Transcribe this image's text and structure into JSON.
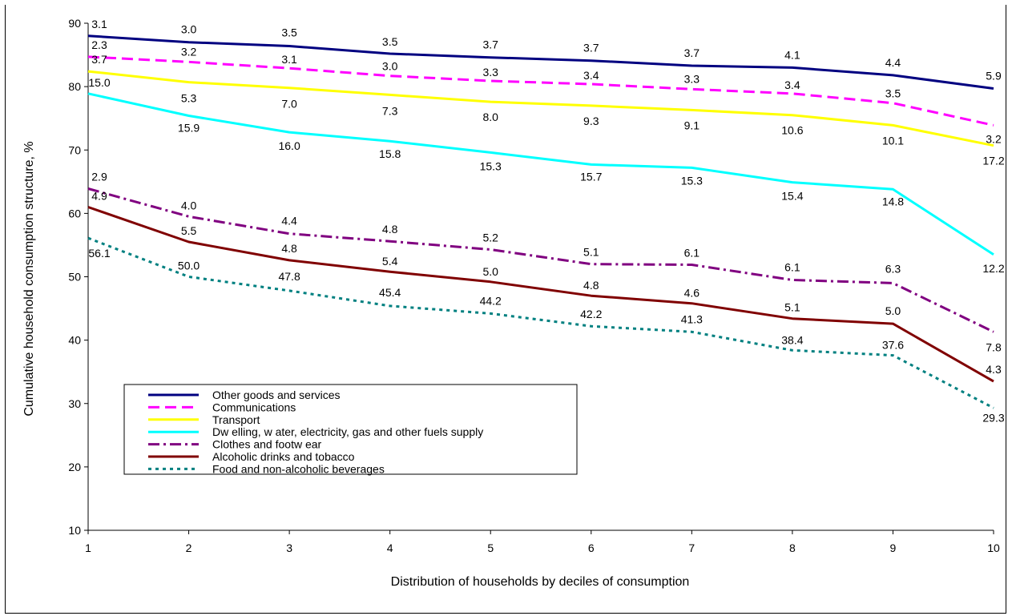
{
  "chart_data": {
    "type": "line",
    "title": "",
    "xlabel": "Distribution of households by deciles of consumption",
    "ylabel": "Cumulative household consumption structure, %",
    "x": [
      1,
      2,
      3,
      4,
      5,
      6,
      7,
      8,
      9,
      10
    ],
    "ylim": [
      10,
      90
    ],
    "yticks": [
      10,
      20,
      30,
      40,
      50,
      60,
      70,
      80,
      90
    ],
    "grid": false,
    "legend_position": "bottom-left",
    "series": [
      {
        "name": "Other goods and services",
        "color": "#000080",
        "dash": "solid",
        "values": [
          88.0,
          87.0,
          86.4,
          85.2,
          84.6,
          84.1,
          83.3,
          83.0,
          81.8,
          79.7
        ],
        "labels": [
          "3.1",
          "3.0",
          "3.5",
          "3.5",
          "3.7",
          "3.7",
          "3.7",
          "4.1",
          "4.4",
          "5.9"
        ]
      },
      {
        "name": "Communications",
        "color": "#FF00FF",
        "dash": "dashed",
        "values": [
          84.7,
          83.9,
          82.9,
          81.7,
          80.9,
          80.4,
          79.6,
          78.9,
          77.4,
          73.9
        ],
        "labels": [
          "2.3",
          "3.2",
          "3.1",
          "3.0",
          "3.3",
          "3.4",
          "3.3",
          "3.4",
          "3.5",
          "3.2"
        ]
      },
      {
        "name": "Transport",
        "color": "#FFFF00",
        "dash": "solid",
        "values": [
          82.4,
          80.7,
          79.8,
          78.7,
          77.6,
          77.0,
          76.3,
          75.5,
          73.9,
          70.7
        ],
        "labels": [
          "3.7",
          "5.3",
          "7.0",
          "7.3",
          "8.0",
          "9.3",
          "9.1",
          "10.6",
          "10.1",
          "17.2"
        ]
      },
      {
        "name": "Dw elling, w ater, electricity, gas and other fuels supply",
        "color": "#00FFFF",
        "dash": "solid",
        "values": [
          78.9,
          75.4,
          72.8,
          71.4,
          69.6,
          67.7,
          67.2,
          64.9,
          63.8,
          53.5
        ],
        "labels": [
          "15.0",
          "15.9",
          "16.0",
          "15.8",
          "15.3",
          "15.7",
          "15.3",
          "15.4",
          "14.8",
          "12.2"
        ]
      },
      {
        "name": "Clothes and footw ear",
        "color": "#800080",
        "dash": "dashdot",
        "values": [
          63.9,
          59.5,
          56.8,
          55.6,
          54.3,
          52.0,
          51.9,
          49.5,
          49.0,
          41.3
        ],
        "labels": [
          "2.9",
          "4.0",
          "4.4",
          "4.8",
          "5.2",
          "5.1",
          "6.1",
          "6.1",
          "6.3",
          "7.8"
        ]
      },
      {
        "name": "Alcoholic drinks and tobacco",
        "color": "#800000",
        "dash": "solid",
        "values": [
          61.0,
          55.5,
          52.6,
          50.8,
          49.2,
          47.0,
          45.8,
          43.4,
          42.6,
          33.5
        ],
        "labels": [
          "4.9",
          "5.5",
          "4.8",
          "5.4",
          "5.0",
          "4.8",
          "4.6",
          "5.1",
          "5.0",
          "4.3"
        ]
      },
      {
        "name": "Food and non-alcoholic beverages",
        "color": "#008080",
        "dash": "dotted",
        "values": [
          56.1,
          50.0,
          47.8,
          45.4,
          44.2,
          42.2,
          41.3,
          38.4,
          37.6,
          29.3
        ],
        "labels": [
          "56.1",
          "50.0",
          "47.8",
          "45.4",
          "44.2",
          "42.2",
          "41.3",
          "38.4",
          "37.6",
          "29.3"
        ]
      }
    ]
  }
}
